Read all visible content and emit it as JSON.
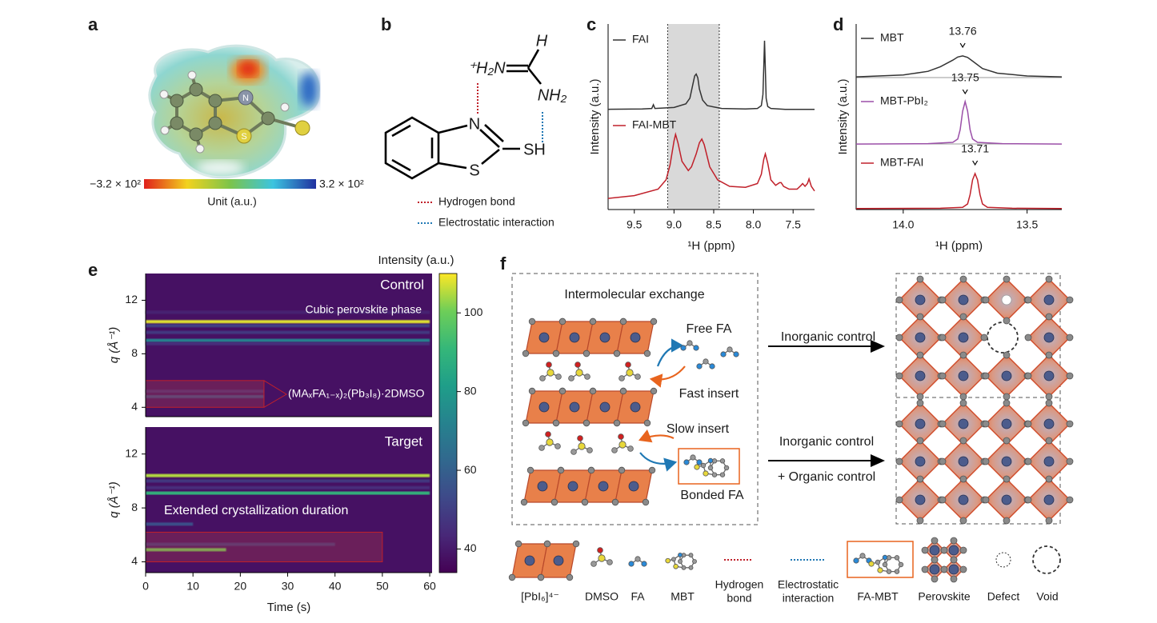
{
  "panel_labels": [
    "a",
    "b",
    "c",
    "d",
    "e",
    "f"
  ],
  "panel_a": {
    "atoms": [
      "N",
      "S"
    ],
    "colorbar_min": "−3.2 × 10²",
    "colorbar_max": "3.2 × 10²",
    "colorbar_label": "Unit (a.u.)"
  },
  "panel_b": {
    "atoms": [
      "⁺H₂N",
      "H",
      "NH₂",
      "N",
      "S",
      "SH"
    ],
    "legend": [
      "Hydrogen bond",
      "Electrostatic interaction"
    ]
  },
  "panel_f": {
    "title": "Intermolecular exchange",
    "labels": [
      "Free FA",
      "Fast insert",
      "Slow insert",
      "Bonded FA"
    ],
    "arrows": [
      [
        "Inorganic control"
      ],
      [
        "Inorganic control",
        "+ Organic control"
      ]
    ],
    "legend": [
      [
        "[PbI₆]⁴⁻"
      ],
      [
        "DMSO"
      ],
      [
        "FA"
      ],
      [
        "MBT"
      ],
      [
        "Hydrogen",
        "bond"
      ],
      [
        "Electrostatic",
        "interaction"
      ],
      [
        "FA-MBT"
      ],
      [
        "Perovskite"
      ],
      [
        "Defect"
      ],
      [
        "Void"
      ]
    ]
  },
  "chart_data": [
    {
      "type": "line",
      "xlabel": "¹H (ppm)",
      "ylabel": "Intensity (a.u.)",
      "xlim": [
        9.83,
        7.23
      ],
      "ylim": [
        0,
        10
      ],
      "xticks": [
        9.5,
        {
          "value": 9,
          "label": "9.0"
        },
        8.5,
        {
          "value": 8,
          "label": "8.0"
        },
        7.5
      ],
      "highlight": [
        9.08,
        8.43
      ],
      "series": [
        {
          "name": "FAI",
          "color": "#333333",
          "x": [
            9.83,
            9.4,
            9.28,
            9.26,
            9.24,
            9.0,
            8.85,
            8.8,
            8.76,
            8.74,
            8.72,
            8.7,
            8.68,
            8.64,
            8.58,
            8.4,
            8.1,
            7.95,
            7.9,
            7.88,
            7.87,
            7.86,
            7.85,
            7.84,
            7.82,
            7.78,
            7.6,
            7.23
          ],
          "values": [
            5.4,
            5.42,
            5.45,
            5.65,
            5.45,
            5.5,
            5.7,
            6.0,
            6.8,
            7.2,
            7.3,
            7.1,
            6.5,
            5.9,
            5.6,
            5.45,
            5.42,
            5.45,
            5.6,
            6.2,
            7.6,
            9.1,
            7.6,
            6.0,
            5.55,
            5.45,
            5.4,
            5.4
          ]
        },
        {
          "name": "FAI-MBT",
          "color": "#c0202a",
          "x": [
            9.83,
            9.5,
            9.2,
            9.1,
            9.05,
            9.0,
            8.98,
            8.95,
            8.9,
            8.82,
            8.78,
            8.72,
            8.68,
            8.65,
            8.62,
            8.55,
            8.45,
            8.3,
            8.1,
            7.95,
            7.9,
            7.87,
            7.85,
            7.82,
            7.78,
            7.72,
            7.67,
            7.65,
            7.62,
            7.55,
            7.45,
            7.4,
            7.38,
            7.35,
            7.32,
            7.3,
            7.27,
            7.23
          ],
          "values": [
            0.6,
            0.75,
            1.1,
            1.6,
            2.4,
            3.7,
            4.05,
            3.6,
            2.6,
            2.1,
            2.3,
            3.0,
            3.6,
            3.8,
            3.5,
            2.3,
            1.6,
            1.25,
            1.2,
            1.4,
            1.9,
            2.7,
            3.0,
            2.5,
            1.6,
            1.3,
            1.45,
            1.45,
            1.25,
            1.1,
            1.1,
            1.3,
            1.4,
            1.25,
            1.4,
            1.65,
            1.25,
            1.0
          ]
        }
      ]
    },
    {
      "type": "line",
      "xlabel": "¹H (ppm)",
      "ylabel": "Intensity (a.u.)",
      "xlim": [
        14.19,
        13.36
      ],
      "ylim": [
        0,
        10
      ],
      "xticks": [
        {
          "value": 14,
          "label": "14.0"
        },
        13.5
      ],
      "series": [
        {
          "name": "MBT",
          "color": "#333333",
          "peak": 13.76,
          "x": [
            14.19,
            14.0,
            13.9,
            13.85,
            13.8,
            13.78,
            13.76,
            13.74,
            13.72,
            13.68,
            13.62,
            13.5,
            13.36
          ],
          "values": [
            7.15,
            7.25,
            7.45,
            7.7,
            8.05,
            8.22,
            8.28,
            8.2,
            8.0,
            7.6,
            7.35,
            7.2,
            7.15
          ]
        },
        {
          "name": "MBT-PbI₂",
          "color": "#9b4fa8",
          "peak": 13.75,
          "x": [
            14.19,
            13.9,
            13.8,
            13.78,
            13.77,
            13.76,
            13.75,
            13.74,
            13.73,
            13.72,
            13.7,
            13.6,
            13.36
          ],
          "values": [
            3.53,
            3.55,
            3.62,
            3.8,
            4.3,
            5.3,
            5.82,
            5.3,
            4.3,
            3.8,
            3.62,
            3.55,
            3.53
          ]
        },
        {
          "name": "MBT-FAI",
          "color": "#c0202a",
          "peak": 13.71,
          "x": [
            14.19,
            13.85,
            13.76,
            13.74,
            13.73,
            13.72,
            13.71,
            13.7,
            13.69,
            13.68,
            13.66,
            13.56,
            13.36
          ],
          "values": [
            0.05,
            0.07,
            0.12,
            0.3,
            0.8,
            1.6,
            1.94,
            1.6,
            0.8,
            0.3,
            0.12,
            0.07,
            0.05
          ]
        }
      ]
    },
    {
      "type": "heatmap",
      "xlabel": "Time (s)",
      "ylabel": "q (Å⁻¹)",
      "xlim": [
        0,
        60.5
      ],
      "xticks": [
        0,
        10,
        20,
        30,
        40,
        50,
        60
      ],
      "yticks": [
        4,
        8,
        12
      ],
      "colorbar": {
        "label": "Intensity (a.u.)",
        "lim": [
          34,
          110
        ],
        "ticks": [
          40,
          60,
          80,
          100
        ]
      },
      "panels": [
        {
          "label": "Control",
          "annotation": "Cubic perovskite phase",
          "box_label": "(MAₓFA₁₋ₓ)₂(Pb₃I₈)·2DMSO",
          "ylim": [
            3.3,
            14.0
          ],
          "background": 38,
          "box": {
            "t": [
              0,
              25
            ],
            "q": [
              4,
              6
            ]
          },
          "bands": [
            {
              "q": 10.4,
              "intensity": 108,
              "t": [
                0,
                60
              ]
            },
            {
              "q": 10.1,
              "intensity": 50,
              "t": [
                0,
                60
              ]
            },
            {
              "q": 9.6,
              "intensity": 48,
              "t": [
                0,
                60
              ]
            },
            {
              "q": 9.0,
              "intensity": 72,
              "t": [
                0,
                60
              ]
            },
            {
              "q": 8.75,
              "intensity": 45,
              "t": [
                0,
                60
              ]
            },
            {
              "q": 11.1,
              "intensity": 42,
              "t": [
                0,
                60
              ]
            },
            {
              "q": 4.8,
              "intensity": 52,
              "t": [
                0,
                25
              ]
            },
            {
              "q": 5.2,
              "intensity": 45,
              "t": [
                0,
                25
              ]
            }
          ]
        },
        {
          "label": "Target",
          "annotation": "Extended crystallization duration",
          "ylim": [
            3.2,
            14.0
          ],
          "background": 38,
          "box": {
            "t": [
              0,
              50
            ],
            "q": [
              4,
              6.2
            ]
          },
          "bands": [
            {
              "q": 10.4,
              "intensity": 105,
              "t": [
                0,
                60
              ]
            },
            {
              "q": 10.0,
              "intensity": 48,
              "t": [
                0,
                60
              ]
            },
            {
              "q": 9.1,
              "intensity": 90,
              "t": [
                0,
                60
              ]
            },
            {
              "q": 9.5,
              "intensity": 45,
              "t": [
                0,
                60
              ]
            },
            {
              "q": 6.8,
              "intensity": 55,
              "t": [
                0,
                10
              ]
            },
            {
              "q": 4.9,
              "intensity": 100,
              "t": [
                0,
                17
              ]
            },
            {
              "q": 5.3,
              "intensity": 48,
              "t": [
                0,
                40
              ]
            }
          ]
        }
      ]
    }
  ]
}
